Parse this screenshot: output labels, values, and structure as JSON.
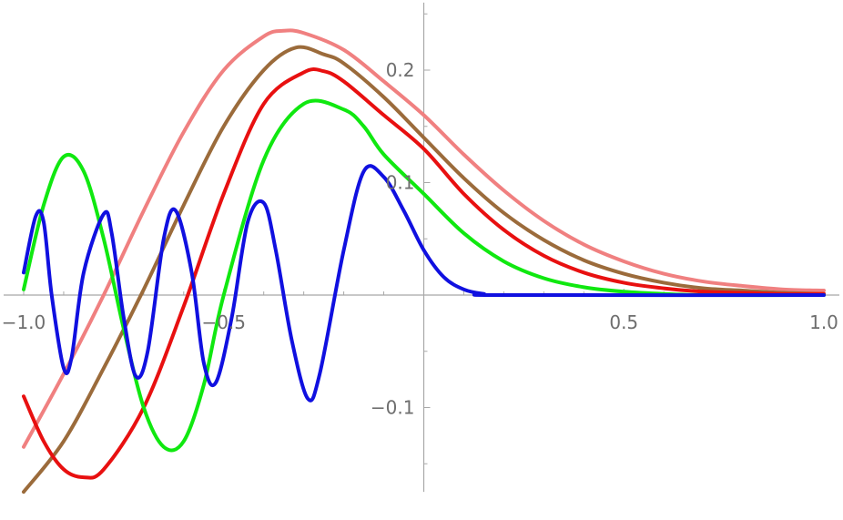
{
  "chart_data": {
    "type": "line",
    "title": "",
    "xlabel": "",
    "ylabel": "",
    "xlim": [
      -1.0,
      1.0
    ],
    "ylim": [
      -0.175,
      0.26
    ],
    "grid": false,
    "x_ticks": [
      {
        "value": -1.0,
        "label": "−1.0"
      },
      {
        "value": -0.5,
        "label": "−0.5"
      },
      {
        "value": 0.5,
        "label": "0.5"
      },
      {
        "value": 1.0,
        "label": "1.0"
      }
    ],
    "y_ticks": [
      {
        "value": 0.2,
        "label": "0.2"
      },
      {
        "value": 0.1,
        "label": "0.1"
      },
      {
        "value": -0.1,
        "label": "−0.1"
      }
    ],
    "series": [
      {
        "color": "#f08080",
        "points": [
          [
            -1.0,
            -0.135
          ],
          [
            -0.9,
            -0.07
          ],
          [
            -0.8,
            0.0
          ],
          [
            -0.7,
            0.075
          ],
          [
            -0.6,
            0.145
          ],
          [
            -0.5,
            0.2
          ],
          [
            -0.4,
            0.23
          ],
          [
            -0.35,
            0.235
          ],
          [
            -0.3,
            0.233
          ],
          [
            -0.2,
            0.218
          ],
          [
            -0.1,
            0.19
          ],
          [
            0.0,
            0.16
          ],
          [
            0.1,
            0.125
          ],
          [
            0.2,
            0.093
          ],
          [
            0.3,
            0.066
          ],
          [
            0.4,
            0.045
          ],
          [
            0.5,
            0.03
          ],
          [
            0.6,
            0.019
          ],
          [
            0.7,
            0.012
          ],
          [
            0.8,
            0.008
          ],
          [
            0.9,
            0.005
          ],
          [
            1.0,
            0.004
          ]
        ]
      },
      {
        "color": "#9b6b3b",
        "points": [
          [
            -1.0,
            -0.175
          ],
          [
            -0.9,
            -0.13
          ],
          [
            -0.8,
            -0.065
          ],
          [
            -0.7,
            0.005
          ],
          [
            -0.6,
            0.08
          ],
          [
            -0.5,
            0.15
          ],
          [
            -0.4,
            0.2
          ],
          [
            -0.32,
            0.22
          ],
          [
            -0.25,
            0.214
          ],
          [
            -0.2,
            0.206
          ],
          [
            -0.1,
            0.176
          ],
          [
            0.0,
            0.14
          ],
          [
            0.1,
            0.104
          ],
          [
            0.2,
            0.073
          ],
          [
            0.3,
            0.049
          ],
          [
            0.4,
            0.031
          ],
          [
            0.5,
            0.019
          ],
          [
            0.6,
            0.011
          ],
          [
            0.7,
            0.006
          ],
          [
            0.8,
            0.004
          ],
          [
            0.9,
            0.002
          ],
          [
            1.0,
            0.001
          ]
        ]
      },
      {
        "color": "#e81010",
        "points": [
          [
            -1.0,
            -0.09
          ],
          [
            -0.95,
            -0.13
          ],
          [
            -0.9,
            -0.155
          ],
          [
            -0.85,
            -0.162
          ],
          [
            -0.8,
            -0.155
          ],
          [
            -0.7,
            -0.1
          ],
          [
            -0.6,
            -0.01
          ],
          [
            -0.5,
            0.09
          ],
          [
            -0.4,
            0.17
          ],
          [
            -0.3,
            0.198
          ],
          [
            -0.25,
            0.199
          ],
          [
            -0.2,
            0.19
          ],
          [
            -0.1,
            0.16
          ],
          [
            0.0,
            0.13
          ],
          [
            0.1,
            0.09
          ],
          [
            0.2,
            0.058
          ],
          [
            0.3,
            0.035
          ],
          [
            0.4,
            0.02
          ],
          [
            0.5,
            0.011
          ],
          [
            0.6,
            0.006
          ],
          [
            0.7,
            0.003
          ],
          [
            0.8,
            0.002
          ],
          [
            0.9,
            0.001
          ],
          [
            1.0,
            0.001
          ]
        ]
      },
      {
        "color": "#10e810",
        "points": [
          [
            -1.0,
            0.005
          ],
          [
            -0.95,
            0.08
          ],
          [
            -0.9,
            0.123
          ],
          [
            -0.85,
            0.11
          ],
          [
            -0.8,
            0.05
          ],
          [
            -0.75,
            -0.03
          ],
          [
            -0.7,
            -0.1
          ],
          [
            -0.65,
            -0.135
          ],
          [
            -0.6,
            -0.13
          ],
          [
            -0.55,
            -0.08
          ],
          [
            -0.5,
            0.0
          ],
          [
            -0.4,
            0.12
          ],
          [
            -0.3,
            0.17
          ],
          [
            -0.2,
            0.165
          ],
          [
            -0.15,
            0.15
          ],
          [
            -0.1,
            0.125
          ],
          [
            0.0,
            0.09
          ],
          [
            0.1,
            0.055
          ],
          [
            0.2,
            0.03
          ],
          [
            0.3,
            0.015
          ],
          [
            0.4,
            0.007
          ],
          [
            0.5,
            0.003
          ],
          [
            0.6,
            0.001
          ],
          [
            0.7,
            0.0
          ],
          [
            1.0,
            0.0
          ]
        ]
      },
      {
        "color": "#1010e0",
        "points": [
          [
            -1.0,
            0.02
          ],
          [
            -0.97,
            0.07
          ],
          [
            -0.95,
            0.065
          ],
          [
            -0.93,
            0.0
          ],
          [
            -0.9,
            -0.065
          ],
          [
            -0.88,
            -0.055
          ],
          [
            -0.85,
            0.02
          ],
          [
            -0.8,
            0.072
          ],
          [
            -0.78,
            0.055
          ],
          [
            -0.75,
            -0.02
          ],
          [
            -0.72,
            -0.072
          ],
          [
            -0.69,
            -0.05
          ],
          [
            -0.65,
            0.05
          ],
          [
            -0.62,
            0.075
          ],
          [
            -0.58,
            0.02
          ],
          [
            -0.55,
            -0.06
          ],
          [
            -0.52,
            -0.078
          ],
          [
            -0.48,
            -0.02
          ],
          [
            -0.44,
            0.065
          ],
          [
            -0.4,
            0.082
          ],
          [
            -0.37,
            0.04
          ],
          [
            -0.33,
            -0.04
          ],
          [
            -0.29,
            -0.092
          ],
          [
            -0.26,
            -0.07
          ],
          [
            -0.2,
            0.04
          ],
          [
            -0.15,
            0.11
          ],
          [
            -0.1,
            0.105
          ],
          [
            -0.05,
            0.075
          ],
          [
            0.0,
            0.04
          ],
          [
            0.05,
            0.016
          ],
          [
            0.1,
            0.005
          ],
          [
            0.15,
            0.001
          ],
          [
            0.2,
            0.0
          ],
          [
            1.0,
            0.0
          ]
        ]
      }
    ]
  }
}
